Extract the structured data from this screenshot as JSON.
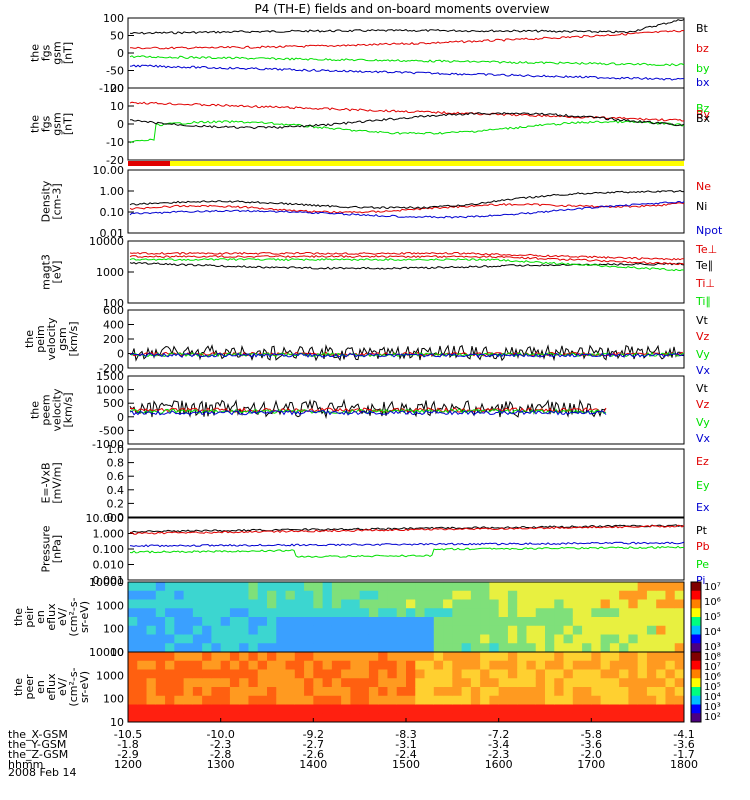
{
  "title": "P4 (TH-E) fields and on-board moments overview",
  "date_label": "2008 Feb 14",
  "colors": {
    "black": "#000000",
    "red": "#e00000",
    "green": "#00e000",
    "blue": "#0000d0",
    "yellow": "#ffff00"
  },
  "chart_data": [
    {
      "type": "line",
      "panel": "fgs-gse",
      "ylabel": [
        "the",
        "fgs",
        "gsm",
        "[nT]"
      ],
      "yticks": [
        "100",
        "50",
        "0",
        "-50",
        "-100"
      ],
      "yrange": [
        -100,
        100
      ],
      "series": [
        {
          "name": "Bt",
          "color": "#000000"
        },
        {
          "name": "bz",
          "color": "#e00000"
        },
        {
          "name": "by",
          "color": "#00e000"
        },
        {
          "name": "bx",
          "color": "#0000d0"
        }
      ]
    },
    {
      "type": "line",
      "panel": "fgs-dsl",
      "ylabel": [
        "the",
        "fgs",
        "gsm",
        "[nT]"
      ],
      "yticks": [
        "20",
        "10",
        "0",
        "-10",
        "-20"
      ],
      "yrange": [
        -25,
        25
      ],
      "series": [
        {
          "name": "Bz",
          "color": "#00e000"
        },
        {
          "name": "By",
          "color": "#e00000"
        },
        {
          "name": "Bx",
          "color": "#000000"
        }
      ]
    },
    {
      "type": "line",
      "panel": "density",
      "ylabel": [
        "Density",
        "[cm-3]"
      ],
      "yticks": [
        "10.00",
        "1.00",
        "0.10",
        "0.01"
      ],
      "log": true,
      "series": [
        {
          "name": "Ne",
          "color": "#e00000"
        },
        {
          "name": "Ni",
          "color": "#000000"
        },
        {
          "name": "Npot",
          "color": "#0000d0"
        }
      ]
    },
    {
      "type": "line",
      "panel": "temperature",
      "ylabel": [
        "magt3",
        "[eV]"
      ],
      "yticks": [
        "10000",
        "1000",
        "100"
      ],
      "log": true,
      "series": [
        {
          "name": "Te⊥",
          "color": "#e00000"
        },
        {
          "name": "Te∥",
          "color": "#000000"
        },
        {
          "name": "Ti⊥",
          "color": "#e00000"
        },
        {
          "name": "Ti∥",
          "color": "#00e000"
        }
      ]
    },
    {
      "type": "line",
      "panel": "peim-velocity",
      "ylabel": [
        "the",
        "peim",
        "velocity",
        "gsm",
        "[km/s]"
      ],
      "yticks": [
        "600",
        "400",
        "200",
        "0",
        "-200"
      ],
      "yrange": [
        -200,
        600
      ],
      "series": [
        {
          "name": "Vt",
          "color": "#000000"
        },
        {
          "name": "Vz",
          "color": "#e00000"
        },
        {
          "name": "Vy",
          "color": "#00e000"
        },
        {
          "name": "Vx",
          "color": "#0000d0"
        }
      ]
    },
    {
      "type": "line",
      "panel": "peem-velocity",
      "ylabel": [
        "the",
        "peem",
        "velocity",
        "[km/s]"
      ],
      "yticks": [
        "1500",
        "1000",
        "500",
        "0",
        "-500",
        "-1000"
      ],
      "yrange": [
        -1500,
        1500
      ],
      "series": [
        {
          "name": "Vt",
          "color": "#000000"
        },
        {
          "name": "Vz",
          "color": "#e00000"
        },
        {
          "name": "Vy",
          "color": "#00e000"
        },
        {
          "name": "Vx",
          "color": "#0000d0"
        }
      ]
    },
    {
      "type": "line",
      "panel": "e-field",
      "ylabel": [
        "E=-VxB",
        "[mV/m]"
      ],
      "yticks": [
        "1.0",
        "0.8",
        "0.6",
        "0.4",
        "0.2",
        "0.0"
      ],
      "yrange": [
        0,
        1
      ],
      "series": [
        {
          "name": "Ez",
          "color": "#e00000"
        },
        {
          "name": "Ey",
          "color": "#00e000"
        },
        {
          "name": "Ex",
          "color": "#0000d0"
        }
      ]
    },
    {
      "type": "line",
      "panel": "pressure",
      "ylabel": [
        "Pressure",
        "[nPa]"
      ],
      "yticks": [
        "10.000",
        "1.000",
        "0.100",
        "0.010",
        "0.001"
      ],
      "log": true,
      "series": [
        {
          "name": "Pt",
          "color": "#000000"
        },
        {
          "name": "Pb",
          "color": "#e00000"
        },
        {
          "name": "Pe",
          "color": "#00e000"
        },
        {
          "name": "Pi",
          "color": "#0000d0"
        }
      ]
    },
    {
      "type": "heatmap",
      "panel": "peir-eflux",
      "ylabel": [
        "the",
        "peir",
        "en",
        "eflux",
        "eV/",
        "(cm²-s-",
        "sr-eV)"
      ],
      "yticks": [
        "10000",
        "1000",
        "100",
        "10"
      ],
      "log": true,
      "colorbar": [
        "10⁷",
        "10⁶",
        "10⁵",
        "10⁴",
        "10³"
      ]
    },
    {
      "type": "heatmap",
      "panel": "peer-eflux",
      "ylabel": [
        "the",
        "peer",
        "en",
        "eflux",
        "eV/",
        "(cm²-s-",
        "sr-eV)"
      ],
      "yticks": [
        "10000",
        "1000",
        "100",
        "10"
      ],
      "log": true,
      "colorbar": [
        "10⁸",
        "10⁷",
        "10⁶",
        "10⁵",
        "10⁴",
        "10³",
        "10²"
      ]
    }
  ],
  "xaxis": {
    "rows": [
      {
        "label": "the_X-GSM",
        "values": [
          "-10.5",
          "-10.0",
          "-9.2",
          "-8.3",
          "-7.2",
          "-5.8",
          "-4.1"
        ]
      },
      {
        "label": "the_Y-GSM",
        "values": [
          "-1.8",
          "-2.3",
          "-2.7",
          "-3.1",
          "-3.4",
          "-3.6",
          "-3.6"
        ]
      },
      {
        "label": "the_Z-GSM",
        "values": [
          "-2.9",
          "-2.8",
          "-2.6",
          "-2.4",
          "-2.3",
          "-2.0",
          "-1.7"
        ]
      },
      {
        "label": "hhmm",
        "values": [
          "1200",
          "1300",
          "1400",
          "1500",
          "1600",
          "1700",
          "1800"
        ]
      }
    ]
  }
}
